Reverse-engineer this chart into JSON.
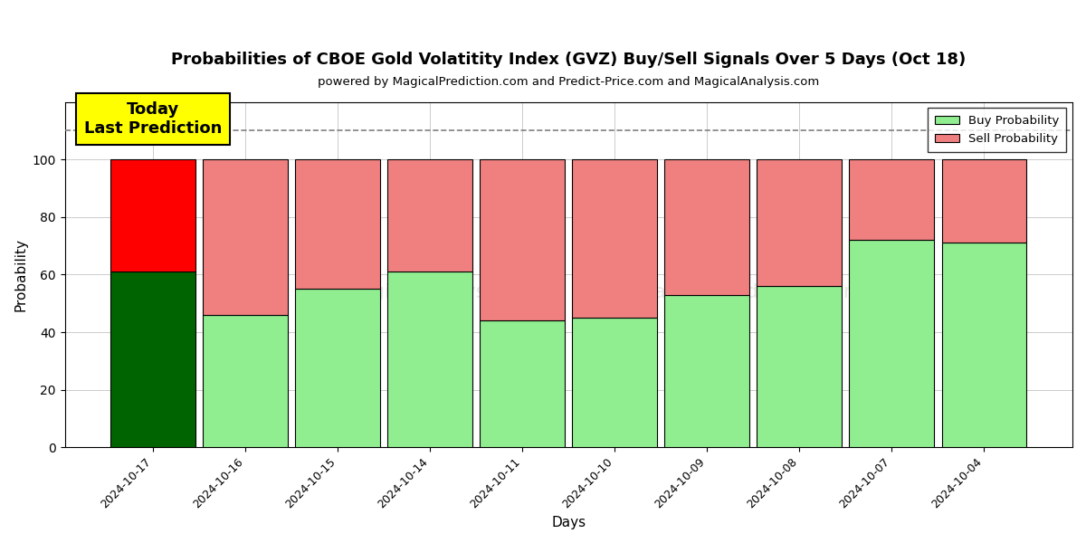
{
  "title": "Probabilities of CBOE Gold Volatitity Index (GVZ) Buy/Sell Signals Over 5 Days (Oct 18)",
  "subtitle": "powered by MagicalPrediction.com and Predict-Price.com and MagicalAnalysis.com",
  "xlabel": "Days",
  "ylabel": "Probability",
  "categories": [
    "2024-10-17",
    "2024-10-16",
    "2024-10-15",
    "2024-10-14",
    "2024-10-11",
    "2024-10-10",
    "2024-10-09",
    "2024-10-08",
    "2024-10-07",
    "2024-10-04"
  ],
  "buy_values": [
    61,
    46,
    55,
    61,
    44,
    45,
    53,
    56,
    72,
    71
  ],
  "sell_values": [
    39,
    54,
    45,
    39,
    56,
    55,
    47,
    44,
    28,
    29
  ],
  "today_buy_color": "#006400",
  "today_sell_color": "#ff0000",
  "other_buy_color": "#90EE90",
  "other_sell_color": "#F08080",
  "bar_edge_color": "#000000",
  "today_annotation": "Today\nLast Prediction",
  "annotation_bg_color": "#ffff00",
  "dashed_line_y": 110,
  "ylim": [
    0,
    120
  ],
  "yticks": [
    0,
    20,
    40,
    60,
    80,
    100
  ],
  "legend_buy_label": "Buy Probability",
  "legend_sell_label": "Sell Probability",
  "background_color": "#ffffff",
  "grid_color": "#cccccc",
  "bar_width": 0.92
}
